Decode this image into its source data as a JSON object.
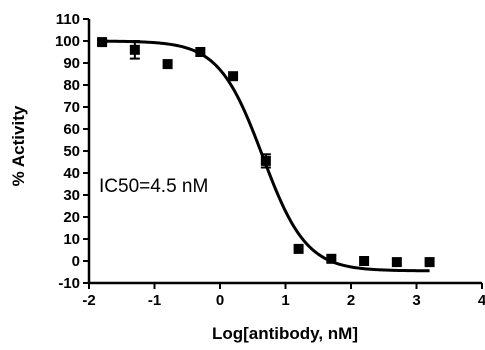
{
  "chart_data": {
    "type": "scatter",
    "xlabel": "Log[antibody, nM]",
    "ylabel": "% Activity",
    "xlim": [
      -2,
      4
    ],
    "ylim": [
      -10,
      110
    ],
    "xticks": [
      -2,
      -1,
      0,
      1,
      2,
      3,
      4
    ],
    "yticks": [
      -10,
      0,
      10,
      20,
      30,
      40,
      50,
      60,
      70,
      80,
      90,
      100,
      110
    ],
    "grid": false,
    "legend": "none",
    "annotation": "IC50=4.5 nM",
    "series": [
      {
        "points": [
          {
            "x": -1.8,
            "y": 99.5,
            "err": 1
          },
          {
            "x": -1.3,
            "y": 96,
            "err": 4
          },
          {
            "x": -0.8,
            "y": 89.5
          },
          {
            "x": -0.3,
            "y": 95
          },
          {
            "x": 0.2,
            "y": 84
          },
          {
            "x": 0.7,
            "y": 45.5,
            "err": 3
          },
          {
            "x": 1.2,
            "y": 5.5
          },
          {
            "x": 1.7,
            "y": 1
          },
          {
            "x": 2.2,
            "y": 0
          },
          {
            "x": 2.7,
            "y": -0.5
          },
          {
            "x": 3.2,
            "y": -0.5
          }
        ]
      }
    ],
    "fit_curve": {
      "model": "sigmoidal dose-response",
      "top": 100,
      "bottom": -4.5,
      "logIC50": 0.65,
      "hill": -1.3,
      "x_range": [
        -1.8,
        3.2
      ]
    },
    "colors": {
      "marker": "#000000",
      "line": "#000000",
      "axis": "#000000"
    }
  }
}
